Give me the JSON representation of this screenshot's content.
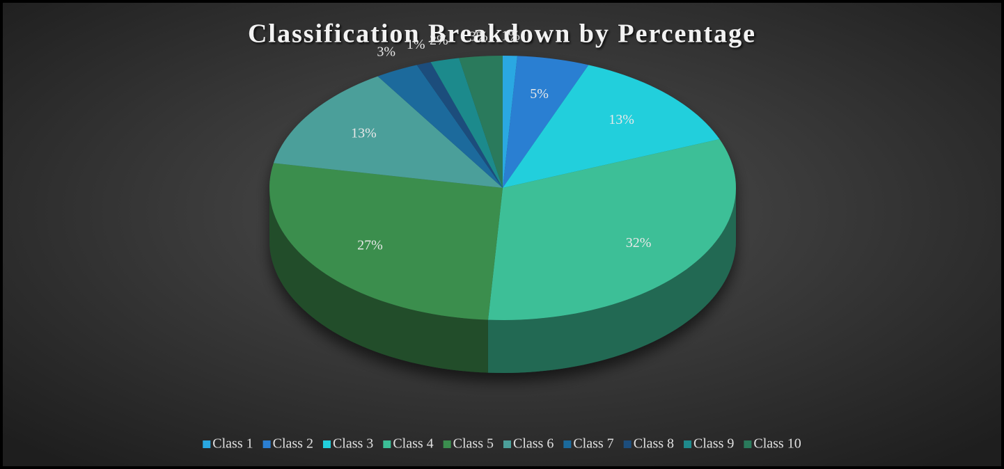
{
  "chart_data": {
    "type": "pie3d",
    "title": "Classification Breakdown by Percentage",
    "categories": [
      "Class 1",
      "Class 2",
      "Class 3",
      "Class 4",
      "Class 5",
      "Class 6",
      "Class 7",
      "Class 8",
      "Class 9",
      "Class 10"
    ],
    "values": [
      1,
      5,
      13,
      32,
      27,
      13,
      3,
      1,
      2,
      3
    ],
    "value_labels": [
      "1%",
      "5%",
      "13%",
      "32%",
      "27%",
      "13%",
      "3%",
      "1%",
      "2%",
      "3%"
    ],
    "colors": [
      "#2aa8e2",
      "#2b7fd2",
      "#22cfdc",
      "#3cbf97",
      "#3b8e4e",
      "#4c9f9a",
      "#1b6a9c",
      "#1c4d7c",
      "#1f8a8c",
      "#2a7a5b"
    ],
    "legend": "bottom"
  }
}
